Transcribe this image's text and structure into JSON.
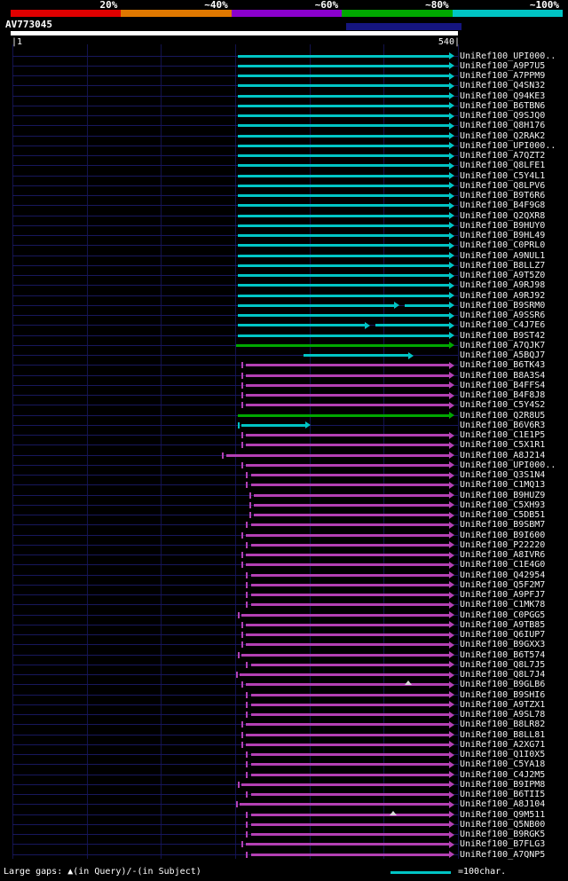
{
  "chart_data": {
    "type": "bar",
    "title": "AV773045",
    "x_axis": {
      "label": "query position",
      "min": 1,
      "max": 540
    },
    "legend": {
      "bins": [
        "20%",
        "~40%",
        "~60%",
        "~80%",
        "~100%"
      ],
      "bin_colors": [
        "#e00000",
        "#e07800",
        "#8a00cc",
        "#00a800",
        "#00c4c4"
      ]
    },
    "hits": [
      {
        "label": "UniRef100_UPI000..",
        "color": "cyan",
        "segments": [
          [
            273,
            536
          ]
        ]
      },
      {
        "label": "UniRef100_A9P7U5",
        "color": "cyan",
        "segments": [
          [
            273,
            536
          ]
        ]
      },
      {
        "label": "UniRef100_A7PPM9",
        "color": "cyan",
        "segments": [
          [
            273,
            536
          ]
        ]
      },
      {
        "label": "UniRef100_Q4SN32",
        "color": "cyan",
        "segments": [
          [
            273,
            536
          ]
        ]
      },
      {
        "label": "UniRef100_Q94KE3",
        "color": "cyan",
        "segments": [
          [
            273,
            536
          ]
        ]
      },
      {
        "label": "UniRef100_B6TBN6",
        "color": "cyan",
        "segments": [
          [
            273,
            536
          ]
        ]
      },
      {
        "label": "UniRef100_Q9SJQ0",
        "color": "cyan",
        "segments": [
          [
            273,
            536
          ]
        ]
      },
      {
        "label": "UniRef100_Q8H176",
        "color": "cyan",
        "segments": [
          [
            273,
            536
          ]
        ]
      },
      {
        "label": "UniRef100_Q2RAK2",
        "color": "cyan",
        "segments": [
          [
            273,
            536
          ]
        ]
      },
      {
        "label": "UniRef100_UPI000..",
        "color": "cyan",
        "segments": [
          [
            273,
            536
          ]
        ]
      },
      {
        "label": "UniRef100_A7QZT2",
        "color": "cyan",
        "segments": [
          [
            273,
            536
          ]
        ]
      },
      {
        "label": "UniRef100_Q8LFE1",
        "color": "cyan",
        "segments": [
          [
            273,
            536
          ]
        ]
      },
      {
        "label": "UniRef100_C5Y4L1",
        "color": "cyan",
        "segments": [
          [
            273,
            536
          ]
        ]
      },
      {
        "label": "UniRef100_Q8LPV6",
        "color": "cyan",
        "segments": [
          [
            273,
            536
          ]
        ]
      },
      {
        "label": "UniRef100_B9T6R6",
        "color": "cyan",
        "segments": [
          [
            273,
            536
          ]
        ]
      },
      {
        "label": "UniRef100_B4F9G8",
        "color": "cyan",
        "segments": [
          [
            273,
            536
          ]
        ]
      },
      {
        "label": "UniRef100_Q2QXR8",
        "color": "cyan",
        "segments": [
          [
            273,
            536
          ]
        ]
      },
      {
        "label": "UniRef100_B9HUY0",
        "color": "cyan",
        "segments": [
          [
            273,
            536
          ]
        ]
      },
      {
        "label": "UniRef100_B9HL49",
        "color": "cyan",
        "segments": [
          [
            273,
            536
          ]
        ]
      },
      {
        "label": "UniRef100_C0PRL0",
        "color": "cyan",
        "segments": [
          [
            273,
            536
          ]
        ]
      },
      {
        "label": "UniRef100_A9NUL1",
        "color": "cyan",
        "segments": [
          [
            273,
            536
          ]
        ]
      },
      {
        "label": "UniRef100_B8LLZ7",
        "color": "cyan",
        "segments": [
          [
            273,
            536
          ]
        ]
      },
      {
        "label": "UniRef100_A9T5Z0",
        "color": "cyan",
        "segments": [
          [
            273,
            536
          ]
        ]
      },
      {
        "label": "UniRef100_A9RJ98",
        "color": "cyan",
        "segments": [
          [
            273,
            536
          ]
        ]
      },
      {
        "label": "UniRef100_A9RJ92",
        "color": "cyan",
        "segments": [
          [
            273,
            536
          ]
        ]
      },
      {
        "label": "UniRef100_B9SRM0",
        "color": "cyan",
        "segments": [
          [
            273,
            469
          ],
          [
            475,
            536
          ]
        ]
      },
      {
        "label": "UniRef100_A9SSR6",
        "color": "cyan",
        "segments": [
          [
            273,
            536
          ]
        ]
      },
      {
        "label": "UniRef100_C4J7E6",
        "color": "cyan",
        "segments": [
          [
            273,
            434
          ],
          [
            440,
            536
          ]
        ]
      },
      {
        "label": "UniRef100_B9ST42",
        "color": "cyan",
        "segments": [
          [
            273,
            536
          ]
        ]
      },
      {
        "label": "UniRef100_A7QJK7",
        "color": "green",
        "segments": [
          [
            271,
            536
          ]
        ]
      },
      {
        "label": "UniRef100_A5BQJ7",
        "color": "cyan",
        "segments": [
          [
            353,
            486
          ]
        ]
      },
      {
        "label": "UniRef100_B6TK43",
        "color": "magenta",
        "tick": 277,
        "segments": [
          [
            283,
            536
          ]
        ]
      },
      {
        "label": "UniRef100_B8A3S4",
        "color": "magenta",
        "tick": 277,
        "segments": [
          [
            283,
            536
          ]
        ]
      },
      {
        "label": "UniRef100_B4FFS4",
        "color": "magenta",
        "tick": 277,
        "segments": [
          [
            283,
            536
          ]
        ]
      },
      {
        "label": "UniRef100_B4F8J8",
        "color": "magenta",
        "tick": 277,
        "segments": [
          [
            283,
            536
          ]
        ]
      },
      {
        "label": "UniRef100_C5Y4S2",
        "color": "magenta",
        "tick": 277,
        "segments": [
          [
            283,
            536
          ]
        ]
      },
      {
        "label": "UniRef100_Q2R8U5",
        "color": "green",
        "segments": [
          [
            273,
            536
          ]
        ]
      },
      {
        "label": "UniRef100_B6V6R3",
        "color": "cyan",
        "tick": 273,
        "segments": [
          [
            277,
            361
          ]
        ]
      },
      {
        "label": "UniRef100_C1E1P5",
        "color": "magenta",
        "tick": 277,
        "segments": [
          [
            283,
            536
          ]
        ]
      },
      {
        "label": "UniRef100_C5X1R1",
        "color": "magenta",
        "tick": 277,
        "segments": [
          [
            283,
            536
          ]
        ]
      },
      {
        "label": "UniRef100_A8J214",
        "color": "magenta",
        "tick": 254,
        "segments": [
          [
            259,
            536
          ]
        ]
      },
      {
        "label": "UniRef100_UPI000..",
        "color": "magenta",
        "tick": 277,
        "segments": [
          [
            283,
            536
          ]
        ]
      },
      {
        "label": "UniRef100_Q3S1N4",
        "color": "magenta",
        "tick": 283,
        "segments": [
          [
            289,
            536
          ]
        ]
      },
      {
        "label": "UniRef100_C1MQ13",
        "color": "magenta",
        "tick": 283,
        "segments": [
          [
            289,
            536
          ]
        ]
      },
      {
        "label": "UniRef100_B9HUZ9",
        "color": "magenta",
        "tick": 287,
        "segments": [
          [
            293,
            536
          ]
        ]
      },
      {
        "label": "UniRef100_C5XH93",
        "color": "magenta",
        "tick": 287,
        "segments": [
          [
            293,
            536
          ]
        ]
      },
      {
        "label": "UniRef100_C5DB51",
        "color": "magenta",
        "tick": 287,
        "segments": [
          [
            293,
            536
          ]
        ]
      },
      {
        "label": "UniRef100_B9SBM7",
        "color": "magenta",
        "tick": 283,
        "segments": [
          [
            289,
            536
          ]
        ]
      },
      {
        "label": "UniRef100_B9I600",
        "color": "magenta",
        "tick": 277,
        "segments": [
          [
            283,
            536
          ]
        ]
      },
      {
        "label": "UniRef100_P22220",
        "color": "magenta",
        "tick": 283,
        "segments": [
          [
            289,
            536
          ]
        ]
      },
      {
        "label": "UniRef100_A8IVR6",
        "color": "magenta",
        "tick": 277,
        "segments": [
          [
            283,
            536
          ]
        ]
      },
      {
        "label": "UniRef100_C1E4G0",
        "color": "magenta",
        "tick": 277,
        "segments": [
          [
            283,
            536
          ]
        ]
      },
      {
        "label": "UniRef100_Q42954",
        "color": "magenta",
        "tick": 283,
        "segments": [
          [
            289,
            536
          ]
        ]
      },
      {
        "label": "UniRef100_Q5F2M7",
        "color": "magenta",
        "tick": 283,
        "segments": [
          [
            289,
            536
          ]
        ]
      },
      {
        "label": "UniRef100_A9PFJ7",
        "color": "magenta",
        "tick": 283,
        "segments": [
          [
            289,
            536
          ]
        ]
      },
      {
        "label": "UniRef100_C1MK78",
        "color": "magenta",
        "tick": 283,
        "segments": [
          [
            289,
            536
          ]
        ]
      },
      {
        "label": "UniRef100_C0PGG5",
        "color": "magenta",
        "tick": 273,
        "segments": [
          [
            277,
            536
          ]
        ]
      },
      {
        "label": "UniRef100_A9TB85",
        "color": "magenta",
        "tick": 277,
        "segments": [
          [
            283,
            536
          ]
        ]
      },
      {
        "label": "UniRef100_Q6IUP7",
        "color": "magenta",
        "tick": 277,
        "segments": [
          [
            283,
            536
          ]
        ]
      },
      {
        "label": "UniRef100_B9GXX3",
        "color": "magenta",
        "tick": 277,
        "segments": [
          [
            283,
            536
          ]
        ]
      },
      {
        "label": "UniRef100_B6T574",
        "color": "magenta",
        "tick": 273,
        "segments": [
          [
            277,
            536
          ]
        ]
      },
      {
        "label": "UniRef100_Q8L7J5",
        "color": "magenta",
        "tick": 283,
        "segments": [
          [
            289,
            536
          ]
        ]
      },
      {
        "label": "UniRef100_Q8L7J4",
        "color": "magenta",
        "tick": 271,
        "segments": [
          [
            275,
            536
          ]
        ]
      },
      {
        "label": "UniRef100_B9GLB6",
        "color": "magenta",
        "tick": 277,
        "segments": [
          [
            283,
            536
          ]
        ],
        "gaps": [
          480
        ]
      },
      {
        "label": "UniRef100_B9SHI6",
        "color": "magenta",
        "tick": 283,
        "segments": [
          [
            289,
            536
          ]
        ]
      },
      {
        "label": "UniRef100_A9TZX1",
        "color": "magenta",
        "tick": 283,
        "segments": [
          [
            289,
            536
          ]
        ]
      },
      {
        "label": "UniRef100_A9SL78",
        "color": "magenta",
        "tick": 283,
        "segments": [
          [
            289,
            536
          ]
        ]
      },
      {
        "label": "UniRef100_B8LR82",
        "color": "magenta",
        "tick": 277,
        "segments": [
          [
            283,
            536
          ]
        ]
      },
      {
        "label": "UniRef100_B8LL81",
        "color": "magenta",
        "tick": 277,
        "segments": [
          [
            283,
            536
          ]
        ]
      },
      {
        "label": "UniRef100_A2XG71",
        "color": "magenta",
        "tick": 277,
        "segments": [
          [
            283,
            536
          ]
        ]
      },
      {
        "label": "UniRef100_Q1I0X5",
        "color": "magenta",
        "tick": 283,
        "segments": [
          [
            289,
            536
          ]
        ]
      },
      {
        "label": "UniRef100_C5YA18",
        "color": "magenta",
        "tick": 283,
        "segments": [
          [
            289,
            536
          ]
        ]
      },
      {
        "label": "UniRef100_C4J2M5",
        "color": "magenta",
        "tick": 283,
        "segments": [
          [
            289,
            536
          ]
        ]
      },
      {
        "label": "UniRef100_B9IPM8",
        "color": "magenta",
        "tick": 273,
        "segments": [
          [
            277,
            536
          ]
        ]
      },
      {
        "label": "UniRef100_B6TII5",
        "color": "magenta",
        "tick": 283,
        "segments": [
          [
            289,
            536
          ]
        ]
      },
      {
        "label": "UniRef100_A8J104",
        "color": "magenta",
        "tick": 271,
        "segments": [
          [
            275,
            536
          ]
        ]
      },
      {
        "label": "UniRef100_Q9M511",
        "color": "magenta",
        "tick": 283,
        "segments": [
          [
            289,
            536
          ]
        ],
        "gaps": [
          461
        ]
      },
      {
        "label": "UniRef100_Q5NB00",
        "color": "magenta",
        "tick": 283,
        "segments": [
          [
            289,
            536
          ]
        ]
      },
      {
        "label": "UniRef100_B9RGK5",
        "color": "magenta",
        "tick": 283,
        "segments": [
          [
            289,
            536
          ]
        ]
      },
      {
        "label": "UniRef100_B7FLG3",
        "color": "magenta",
        "tick": 277,
        "segments": [
          [
            283,
            536
          ]
        ]
      },
      {
        "label": "UniRef100_A7QNP5",
        "color": "magenta",
        "tick": 283,
        "segments": [
          [
            289,
            536
          ]
        ]
      }
    ]
  },
  "query": {
    "name": "AV773045",
    "ruler_start": "|1",
    "ruler_end": "540|"
  },
  "footer": {
    "gaps_note": "Large gaps: ▲(in Query)/-(in Subject)",
    "scale_label": "=100char."
  },
  "colors": {
    "cyan": "#00c4c4",
    "green": "#00a800",
    "magenta": "#b340b3",
    "row_line": "#17175c",
    "grid": "#12124d",
    "label": "#f0f0f0",
    "gap_marker": "#d8d8d8",
    "query_bar": "#ffffff",
    "highlight": "#15157f"
  }
}
